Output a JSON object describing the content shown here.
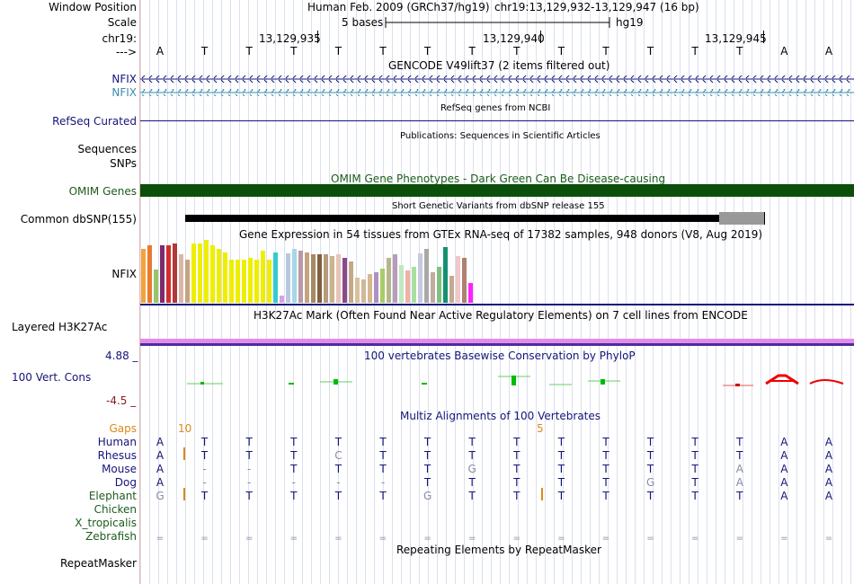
{
  "ruler": {
    "window_position_label": "Window Position",
    "scale_label": "Scale",
    "chrom_label": "chr19:",
    "strand_label": "--->",
    "title": "Human Feb. 2009 (GRCh37/hg19)",
    "position": "chr19:13,129,932-13,129,947 (16 bp)",
    "scale_text": "5 bases",
    "assembly": "hg19",
    "ticks": [
      "13,129,935",
      "13,129,940",
      "13,129,945"
    ],
    "bases": [
      "A",
      "T",
      "T",
      "T",
      "T",
      "T",
      "T",
      "T",
      "T",
      "T",
      "T",
      "T",
      "T",
      "T",
      "A",
      "A"
    ]
  },
  "gencode": {
    "title": "GENCODE V49lift37 (2 items filtered out)",
    "items": [
      "NFIX",
      "NFIX"
    ]
  },
  "refseq": {
    "label": "RefSeq Curated",
    "title": "RefSeq genes from NCBI"
  },
  "publications": {
    "label": "Sequences",
    "title": "Publications: Sequences in Scientific Articles"
  },
  "snps": {
    "label": "SNPs"
  },
  "omim": {
    "label": "OMIM Genes",
    "title": "OMIM Gene Phenotypes - Dark Green Can Be Disease-causing",
    "bar_color": "#0b4f0b"
  },
  "dbsnp": {
    "label": "Common dbSNP(155)",
    "title": "Short Genetic Variants from dbSNP release 155"
  },
  "gtex": {
    "label": "NFIX",
    "title": "Gene Expression in 54 tissues from GTEx RNA-seq of 17382 samples, 948 donors (V8, Aug 2019)"
  },
  "h3k27ac": {
    "label": "Layered H3K27Ac",
    "title": "H3K27Ac Mark (Often Found Near Active Regulatory Elements) on 7 cell lines from ENCODE"
  },
  "phylop": {
    "label": "100 Vert. Cons",
    "max": "4.88 _",
    "min": "-4.5 _",
    "title": "100 vertebrates Basewise Conservation by PhyloP"
  },
  "multiz": {
    "title": "Multiz Alignments of 100 Vertebrates",
    "gaps_label": "Gaps",
    "gap_counts": [
      "10",
      "5"
    ],
    "species": [
      {
        "name": "Human",
        "seq": [
          "A",
          "T",
          "T",
          "T",
          "T",
          "T",
          "T",
          "T",
          "T",
          "T",
          "T",
          "T",
          "T",
          "T",
          "A",
          "A"
        ]
      },
      {
        "name": "Rhesus",
        "seq": [
          "A",
          "T",
          "T",
          "T",
          "C",
          "T",
          "T",
          "T",
          "T",
          "T",
          "T",
          "T",
          "T",
          "T",
          "A",
          "A"
        ]
      },
      {
        "name": "Mouse",
        "seq": [
          "A",
          "-",
          "-",
          "T",
          "T",
          "T",
          "T",
          "G",
          "T",
          "T",
          "T",
          "T",
          "T",
          "A",
          "A",
          "A"
        ]
      },
      {
        "name": "Dog",
        "seq": [
          "A",
          "-",
          "-",
          "-",
          "-",
          "-",
          "T",
          "T",
          "T",
          "T",
          "T",
          "G",
          "T",
          "A",
          "A",
          "A"
        ]
      },
      {
        "name": "Elephant",
        "seq": [
          "G",
          "T",
          "T",
          "T",
          "T",
          "T",
          "G",
          "T",
          "T",
          "T",
          "T",
          "T",
          "T",
          "T",
          "A",
          "A"
        ]
      },
      {
        "name": "Chicken",
        "seq": []
      },
      {
        "name": "X_tropicalis",
        "seq": []
      },
      {
        "name": "Zebrafish",
        "seq": [
          "=",
          "=",
          "=",
          "=",
          "=",
          "=",
          "=",
          "=",
          "=",
          "=",
          "=",
          "=",
          "=",
          "=",
          "=",
          "="
        ]
      }
    ]
  },
  "repeatmasker": {
    "label": "RepeatMasker",
    "title": "Repeating Elements by RepeatMasker"
  }
}
